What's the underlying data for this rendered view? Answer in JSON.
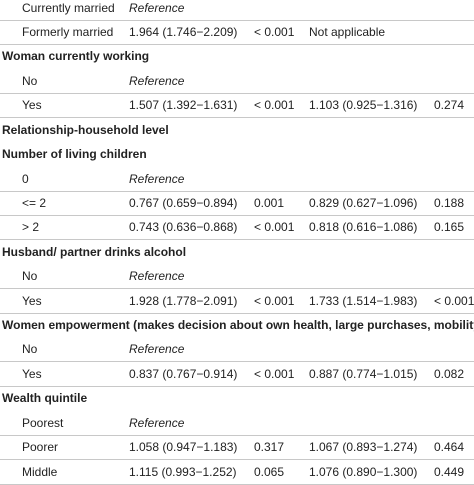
{
  "rows": [
    {
      "kind": "data",
      "cells": [
        "Currently married",
        "Reference",
        "",
        "",
        ""
      ],
      "ref": true
    },
    {
      "kind": "data",
      "cells": [
        "Formerly married",
        "1.964 (1.746−2.209)",
        "< 0.001",
        "Not applicable",
        ""
      ]
    },
    {
      "kind": "head",
      "label": "Woman currently working"
    },
    {
      "kind": "data",
      "cells": [
        "No",
        "Reference",
        "",
        "",
        ""
      ],
      "ref": true
    },
    {
      "kind": "data",
      "cells": [
        "Yes",
        "1.507 (1.392−1.631)",
        "< 0.001",
        "1.103 (0.925−1.316)",
        "0.274"
      ]
    },
    {
      "kind": "head",
      "label": "Relationship-household level"
    },
    {
      "kind": "head",
      "label": "Number of living children"
    },
    {
      "kind": "data",
      "cells": [
        "0",
        "Reference",
        "",
        "",
        ""
      ],
      "ref": true
    },
    {
      "kind": "data",
      "cells": [
        "<= 2",
        "0.767 (0.659−0.894)",
        "0.001",
        "0.829 (0.627−1.096)",
        "0.188"
      ]
    },
    {
      "kind": "data",
      "cells": [
        "> 2",
        "0.743 (0.636−0.868)",
        "< 0.001",
        "0.818 (0.616−1.086)",
        "0.165"
      ]
    },
    {
      "kind": "head",
      "label": "Husband/ partner drinks alcohol"
    },
    {
      "kind": "data",
      "cells": [
        "No",
        "Reference",
        "",
        "",
        ""
      ],
      "ref": true
    },
    {
      "kind": "data",
      "cells": [
        "Yes",
        "1.928 (1.778−2.091)",
        "< 0.001",
        "1.733 (1.514−1.983)",
        "< 0.001"
      ]
    },
    {
      "kind": "head",
      "label": "Women empowerment (makes decision about own health, large purchases, mobility)"
    },
    {
      "kind": "data",
      "cells": [
        "No",
        "Reference",
        "",
        "",
        ""
      ],
      "ref": true
    },
    {
      "kind": "data",
      "cells": [
        "Yes",
        "0.837 (0.767−0.914)",
        "< 0.001",
        "0.887 (0.774−1.015)",
        "0.082"
      ]
    },
    {
      "kind": "head",
      "label": "Wealth quintile"
    },
    {
      "kind": "data",
      "cells": [
        "Poorest",
        "Reference",
        "",
        "",
        ""
      ],
      "ref": true
    },
    {
      "kind": "data",
      "cells": [
        "Poorer",
        "1.058 (0.947−1.183)",
        "0.317",
        "1.067 (0.893−1.274)",
        "0.464"
      ]
    },
    {
      "kind": "data",
      "cells": [
        "Middle",
        "1.115 (0.993−1.252)",
        "0.065",
        "1.076 (0.890−1.300)",
        "0.449"
      ]
    }
  ]
}
